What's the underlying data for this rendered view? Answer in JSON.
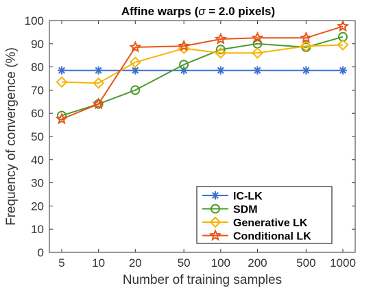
{
  "chart_data": {
    "type": "line",
    "title_prefix": "Affine warps (",
    "title_sigma": "σ",
    "title_suffix": " = 2.0 pixels)",
    "xlabel": "Number of training samples",
    "ylabel": "Frequency of convergence (%)",
    "categories": [
      "5",
      "10",
      "20",
      "50",
      "100",
      "200",
      "500",
      "1000"
    ],
    "x_scale": "log",
    "x": [
      5,
      10,
      20,
      50,
      100,
      200,
      500,
      1000
    ],
    "ylim": [
      0,
      100
    ],
    "yticks": [
      0,
      10,
      20,
      30,
      40,
      50,
      60,
      70,
      80,
      90,
      100
    ],
    "grid": false,
    "legend_position": "bottom-right",
    "series": [
      {
        "name": "IC-LK",
        "color": "#3b6fd0",
        "marker": "asterisk",
        "values": [
          78.5,
          78.5,
          78.5,
          78.5,
          78.5,
          78.5,
          78.5,
          78.5
        ]
      },
      {
        "name": "SDM",
        "color": "#4a9a2c",
        "marker": "circle",
        "values": [
          59,
          64,
          70,
          81,
          87.5,
          90,
          88.5,
          93
        ]
      },
      {
        "name": "Generative LK",
        "color": "#f5b400",
        "marker": "diamond",
        "values": [
          73.5,
          73,
          82,
          88,
          86,
          86,
          89,
          89.5
        ]
      },
      {
        "name": "Conditional LK",
        "color": "#e8541a",
        "marker": "star",
        "values": [
          57.5,
          64,
          88.5,
          89,
          92,
          92.5,
          92.5,
          97.5
        ]
      }
    ]
  }
}
